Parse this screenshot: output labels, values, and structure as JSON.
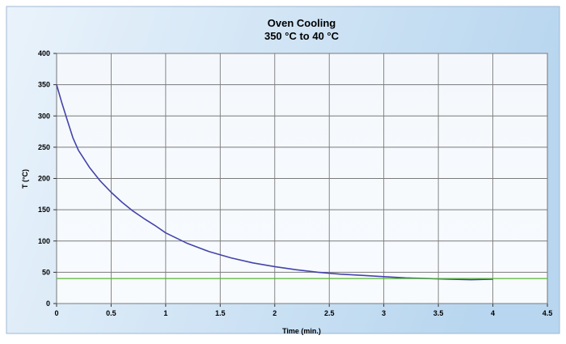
{
  "chart_data": {
    "type": "line",
    "title": "Oven Cooling",
    "subtitle": "350 °C to 40 °C",
    "xlabel": "Time (min.)",
    "ylabel": "T (°C)",
    "xlim": [
      0,
      4.5
    ],
    "ylim": [
      0,
      400
    ],
    "x_ticks": [
      "0",
      "0.5",
      "1",
      "1.5",
      "2",
      "2.5",
      "3",
      "3.5",
      "4",
      "4.5"
    ],
    "y_ticks": [
      "0",
      "50",
      "100",
      "150",
      "200",
      "250",
      "300",
      "350",
      "400"
    ],
    "grid": true,
    "background": "#d6e8f6",
    "series": [
      {
        "color": "#4444aa",
        "x": [
          0,
          0.05,
          0.1,
          0.15,
          0.2,
          0.3,
          0.4,
          0.5,
          0.6,
          0.7,
          0.8,
          0.9,
          1.0,
          1.2,
          1.4,
          1.6,
          1.8,
          2.0,
          2.2,
          2.4,
          2.6,
          2.8,
          3.0,
          3.2,
          3.4,
          3.6,
          3.8,
          4.0
        ],
        "y": [
          350,
          320,
          292,
          265,
          245,
          218,
          196,
          178,
          162,
          148,
          136,
          125,
          113,
          96,
          83,
          73,
          65,
          59,
          54,
          50,
          47,
          45,
          43,
          41,
          40,
          39,
          38,
          39
        ]
      },
      {
        "color": "#55b535",
        "x": [
          0,
          4.5
        ],
        "y": [
          40,
          40
        ]
      }
    ]
  }
}
